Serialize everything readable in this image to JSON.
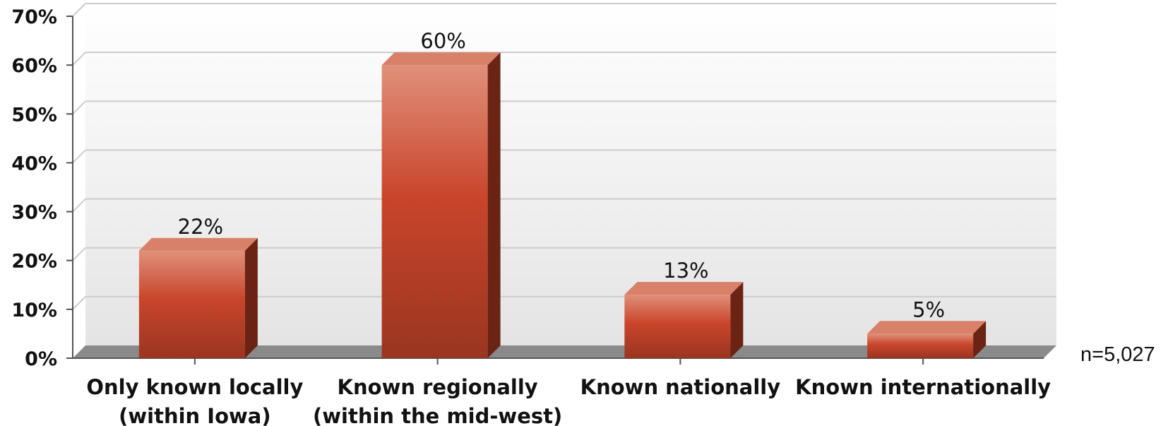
{
  "chart_data": {
    "type": "bar",
    "categories": [
      [
        "Only known locally",
        "(within Iowa)"
      ],
      [
        "Known regionally",
        "(within the mid-west)"
      ],
      [
        "Known nationally"
      ],
      [
        "Known internationally"
      ]
    ],
    "values": [
      22,
      60,
      13,
      5
    ],
    "data_labels": [
      "22%",
      "60%",
      "13%",
      "5%"
    ],
    "y_ticks": [
      "0%",
      "10%",
      "20%",
      "30%",
      "40%",
      "50%",
      "60%",
      "70%"
    ],
    "ylim": [
      0,
      70
    ],
    "grid": true,
    "style": "3d",
    "note": "n=5,027",
    "colors": {
      "bar_top": "#e0907a",
      "bar_mid": "#c9452b",
      "bar_bottom": "#9a3520",
      "bar_side": "#6b2313",
      "bar_cap": "#d98068",
      "grid": "#cccccc",
      "axis": "#555555",
      "plot_bg_top": "#ffffff",
      "plot_bg_bottom": "#e6e6e6"
    }
  }
}
